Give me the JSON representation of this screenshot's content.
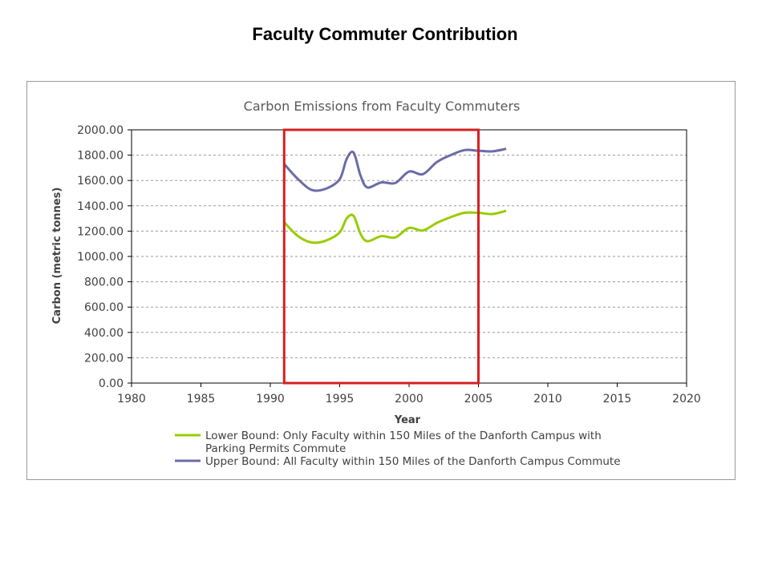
{
  "page": {
    "slide_title": "Faculty Commuter Contribution"
  },
  "chart_data": {
    "type": "line",
    "title": "Carbon Emissions from Faculty Commuters",
    "xlabel": "Year",
    "ylabel": "Carbon (metric tonnes)",
    "xlim": [
      1980,
      2020
    ],
    "ylim": [
      0,
      2000
    ],
    "x_ticks": [
      1980,
      1985,
      1990,
      1995,
      2000,
      2005,
      2010,
      2015,
      2020
    ],
    "y_ticks": [
      "0.00",
      "200.00",
      "400.00",
      "600.00",
      "800.00",
      "1000.00",
      "1200.00",
      "1400.00",
      "1600.00",
      "1800.00",
      "2000.00"
    ],
    "grid": "horizontal dashed",
    "legend_position": "bottom",
    "series": [
      {
        "name": "Lower Bound: Only Faculty within 150 Miles of the Danforth Campus with Parking Permits Commute",
        "legend_lines": [
          "Lower Bound: Only Faculty within 150 Miles of the Danforth Campus with",
          "Parking Permits Commute"
        ],
        "color": "#99cc00",
        "x": [
          1991,
          1992,
          1993,
          1994,
          1995,
          1995.5,
          1996,
          1996.5,
          1997,
          1998,
          1999,
          2000,
          2001,
          2002,
          2003,
          2004,
          2005,
          2006,
          2007
        ],
        "values": [
          1270,
          1160,
          1110,
          1125,
          1190,
          1300,
          1320,
          1180,
          1120,
          1160,
          1150,
          1225,
          1205,
          1265,
          1310,
          1345,
          1345,
          1335,
          1360
        ]
      },
      {
        "name": "Upper Bound: All Faculty within 150 Miles of the Danforth Campus Commute",
        "legend_lines": [
          "Upper Bound: All Faculty within 150 Miles of the Danforth Campus Commute"
        ],
        "color": "#6b6ba8",
        "x": [
          1991,
          1992,
          1993,
          1994,
          1995,
          1995.5,
          1996,
          1996.5,
          1997,
          1998,
          1999,
          2000,
          2001,
          2002,
          2003,
          2004,
          2005,
          2006,
          2007
        ],
        "values": [
          1730,
          1610,
          1525,
          1535,
          1610,
          1770,
          1820,
          1640,
          1545,
          1585,
          1580,
          1670,
          1650,
          1745,
          1800,
          1840,
          1835,
          1830,
          1850
        ]
      }
    ],
    "highlight_box": {
      "x_range": [
        1991,
        2005
      ],
      "y_range": [
        0,
        2000
      ],
      "color": "#d42121"
    }
  }
}
